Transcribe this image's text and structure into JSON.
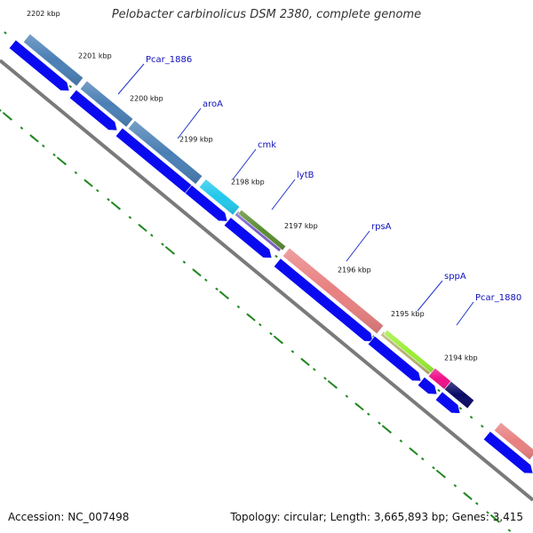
{
  "title": "Pelobacter carbinolicus DSM 2380, complete genome",
  "accession": "Accession: NC_007498",
  "summary": "Topology: circular; Length: 3,665,893 bp; Genes: 3,415",
  "colors": {
    "backbone": "#7a7a7a",
    "tick": "#228822",
    "cds_strand": "#0a0af0",
    "label_text": "#1010bb",
    "label_line": "#2233cc"
  },
  "kbp_labels": [
    "2202 kbp",
    "2201 kbp",
    "2200 kbp",
    "2199 kbp",
    "2198 kbp",
    "2197 kbp",
    "2196 kbp",
    "2195 kbp",
    "2194 kbp"
  ],
  "gene_labels": [
    {
      "name": "Pcar_1886"
    },
    {
      "name": "aroA"
    },
    {
      "name": "cmk"
    },
    {
      "name": "lytB"
    },
    {
      "name": "rpsA"
    },
    {
      "name": "sppA"
    },
    {
      "name": "Pcar_1880"
    }
  ],
  "gene_features": [
    {
      "name": "Pcar_1886",
      "color": "#4a7fb5"
    },
    {
      "name": "aroA",
      "color": "#4a7fb5"
    },
    {
      "name": "cmk",
      "color": "#22c8ea"
    },
    {
      "name": "lytB",
      "color": "#7a5fc8"
    },
    {
      "name": "lytB",
      "color": "#5a8c30"
    },
    {
      "name": "rpsA",
      "color": "#e88080"
    },
    {
      "name": "sppA",
      "color": "#b5b070"
    },
    {
      "name": "sppA",
      "color": "#99ee33"
    },
    {
      "name": "Pcar_1880",
      "color": "#ee1188"
    },
    {
      "name": "Pcar_1880",
      "color": "#0a0a66"
    },
    {
      "name": "",
      "color": "#e88080"
    }
  ]
}
